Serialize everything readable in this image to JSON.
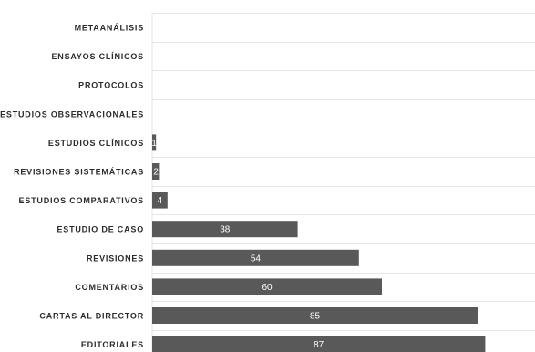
{
  "chart_data": {
    "type": "bar",
    "orientation": "horizontal",
    "title": "",
    "xlabel": "",
    "ylabel": "",
    "categories": [
      "METAANÁLISIS",
      "ENSAYOS CLÍNICOS",
      "PROTOCOLOS",
      "ESTUDIOS OBSERVACIONALES",
      "ESTUDIOS CLÍNICOS",
      "REVISIONES SISTEMÁTICAS",
      "ESTUDIOS COMPARATIVOS",
      "ESTUDIO DE CASO",
      "REVISIONES",
      "COMENTARIOS",
      "CARTAS AL DIRECTOR",
      "EDITORIALES"
    ],
    "values": [
      0,
      0,
      0,
      0,
      1,
      2,
      4,
      38,
      54,
      60,
      85,
      87
    ],
    "value_labels": [
      "",
      "",
      "",
      "",
      "1",
      "2",
      "4",
      "38",
      "54",
      "60",
      "85",
      "87"
    ],
    "xlim": [
      0,
      100
    ],
    "grid": true,
    "colors": {
      "bar": "#595959",
      "value_label": "#ffffff",
      "category_label": "#2b2b2b",
      "grid": "#e6e6e6"
    }
  }
}
